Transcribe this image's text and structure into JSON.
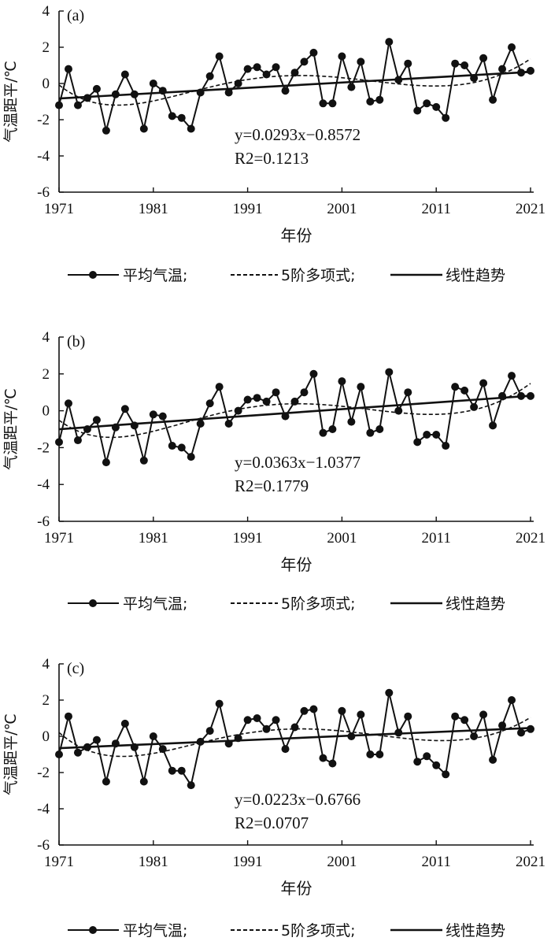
{
  "common": {
    "xlabel": "年份",
    "ylabel": "气温距平/℃",
    "x_ticks": [
      "1971",
      "1981",
      "1991",
      "2001",
      "2011",
      "2021"
    ],
    "y_ticks": [
      "4",
      "2",
      "0",
      "-2",
      "-4",
      "-6"
    ],
    "legend": {
      "mean": "平均气温;",
      "poly": "5阶多项式;",
      "trend": "线性趋势"
    }
  },
  "chart_data": [
    {
      "type": "line",
      "panel": "(a)",
      "xlabel": "年份",
      "ylabel": "气温距平/℃",
      "xlim": [
        1971,
        2021
      ],
      "ylim": [
        -6,
        4
      ],
      "x": [
        1971,
        1972,
        1973,
        1974,
        1975,
        1976,
        1977,
        1978,
        1979,
        1980,
        1981,
        1982,
        1983,
        1984,
        1985,
        1986,
        1987,
        1988,
        1989,
        1990,
        1991,
        1992,
        1993,
        1994,
        1995,
        1996,
        1997,
        1998,
        1999,
        2000,
        2001,
        2002,
        2003,
        2004,
        2005,
        2006,
        2007,
        2008,
        2009,
        2010,
        2011,
        2012,
        2013,
        2014,
        2015,
        2016,
        2017,
        2018,
        2019,
        2020,
        2021
      ],
      "series": [
        {
          "name": "平均气温",
          "values": [
            -1.2,
            0.8,
            -1.2,
            -0.8,
            -0.3,
            -2.6,
            -0.6,
            0.5,
            -0.6,
            -2.5,
            0.0,
            -0.4,
            -1.8,
            -1.9,
            -2.5,
            -0.5,
            0.4,
            1.5,
            -0.5,
            0.0,
            0.8,
            0.9,
            0.5,
            0.9,
            -0.4,
            0.6,
            1.2,
            1.7,
            -1.1,
            -1.1,
            1.5,
            -0.2,
            1.2,
            -1.0,
            -0.9,
            2.3,
            0.2,
            1.1,
            -1.5,
            -1.1,
            -1.3,
            -1.9,
            1.1,
            1.0,
            0.3,
            1.4,
            -0.9,
            0.8,
            2.0,
            0.6,
            0.7
          ]
        }
      ],
      "poly_fit": "5阶多项式",
      "trend": {
        "slope": 0.0293,
        "intercept": -0.8572
      },
      "equation": "y=0.0293x−0.8572",
      "r2": "R2=0.1213"
    },
    {
      "type": "line",
      "panel": "(b)",
      "xlabel": "年份",
      "ylabel": "气温距平/℃",
      "xlim": [
        1971,
        2021
      ],
      "ylim": [
        -6,
        4
      ],
      "x": [
        1971,
        1972,
        1973,
        1974,
        1975,
        1976,
        1977,
        1978,
        1979,
        1980,
        1981,
        1982,
        1983,
        1984,
        1985,
        1986,
        1987,
        1988,
        1989,
        1990,
        1991,
        1992,
        1993,
        1994,
        1995,
        1996,
        1997,
        1998,
        1999,
        2000,
        2001,
        2002,
        2003,
        2004,
        2005,
        2006,
        2007,
        2008,
        2009,
        2010,
        2011,
        2012,
        2013,
        2014,
        2015,
        2016,
        2017,
        2018,
        2019,
        2020,
        2021
      ],
      "series": [
        {
          "name": "平均气温",
          "values": [
            -1.7,
            0.4,
            -1.6,
            -1.0,
            -0.5,
            -2.8,
            -0.9,
            0.1,
            -0.8,
            -2.7,
            -0.2,
            -0.3,
            -1.9,
            -2.0,
            -2.5,
            -0.7,
            0.4,
            1.3,
            -0.7,
            0.0,
            0.6,
            0.7,
            0.5,
            1.0,
            -0.3,
            0.5,
            1.0,
            2.0,
            -1.2,
            -1.0,
            1.6,
            -0.6,
            1.3,
            -1.2,
            -1.0,
            2.1,
            0.0,
            1.0,
            -1.7,
            -1.3,
            -1.3,
            -1.9,
            1.3,
            1.1,
            0.2,
            1.5,
            -0.8,
            0.8,
            1.9,
            0.8,
            0.8
          ]
        }
      ],
      "poly_fit": "5阶多项式",
      "trend": {
        "slope": 0.0363,
        "intercept": -1.0377
      },
      "equation": "y=0.0363x−1.0377",
      "r2": "R2=0.1779"
    },
    {
      "type": "line",
      "panel": "(c)",
      "xlabel": "年份",
      "ylabel": "气温距平/℃",
      "xlim": [
        1971,
        2021
      ],
      "ylim": [
        -6,
        4
      ],
      "x": [
        1971,
        1972,
        1973,
        1974,
        1975,
        1976,
        1977,
        1978,
        1979,
        1980,
        1981,
        1982,
        1983,
        1984,
        1985,
        1986,
        1987,
        1988,
        1989,
        1990,
        1991,
        1992,
        1993,
        1994,
        1995,
        1996,
        1997,
        1998,
        1999,
        2000,
        2001,
        2002,
        2003,
        2004,
        2005,
        2006,
        2007,
        2008,
        2009,
        2010,
        2011,
        2012,
        2013,
        2014,
        2015,
        2016,
        2017,
        2018,
        2019,
        2020,
        2021
      ],
      "series": [
        {
          "name": "平均气温",
          "values": [
            -1.0,
            1.1,
            -0.9,
            -0.6,
            -0.2,
            -2.5,
            -0.4,
            0.7,
            -0.6,
            -2.5,
            0.0,
            -0.7,
            -1.9,
            -1.9,
            -2.7,
            -0.3,
            0.3,
            1.8,
            -0.4,
            -0.1,
            0.9,
            1.0,
            0.4,
            0.9,
            -0.7,
            0.5,
            1.4,
            1.5,
            -1.2,
            -1.5,
            1.4,
            0.0,
            1.2,
            -1.0,
            -1.0,
            2.4,
            0.2,
            1.1,
            -1.4,
            -1.1,
            -1.6,
            -2.1,
            1.1,
            0.9,
            0.0,
            1.2,
            -1.3,
            0.6,
            2.0,
            0.2,
            0.4
          ]
        }
      ],
      "poly_fit": "5阶多项式",
      "trend": {
        "slope": 0.0223,
        "intercept": -0.6766
      },
      "equation": "y=0.0223x−0.6766",
      "r2": "R2=0.0707"
    }
  ]
}
